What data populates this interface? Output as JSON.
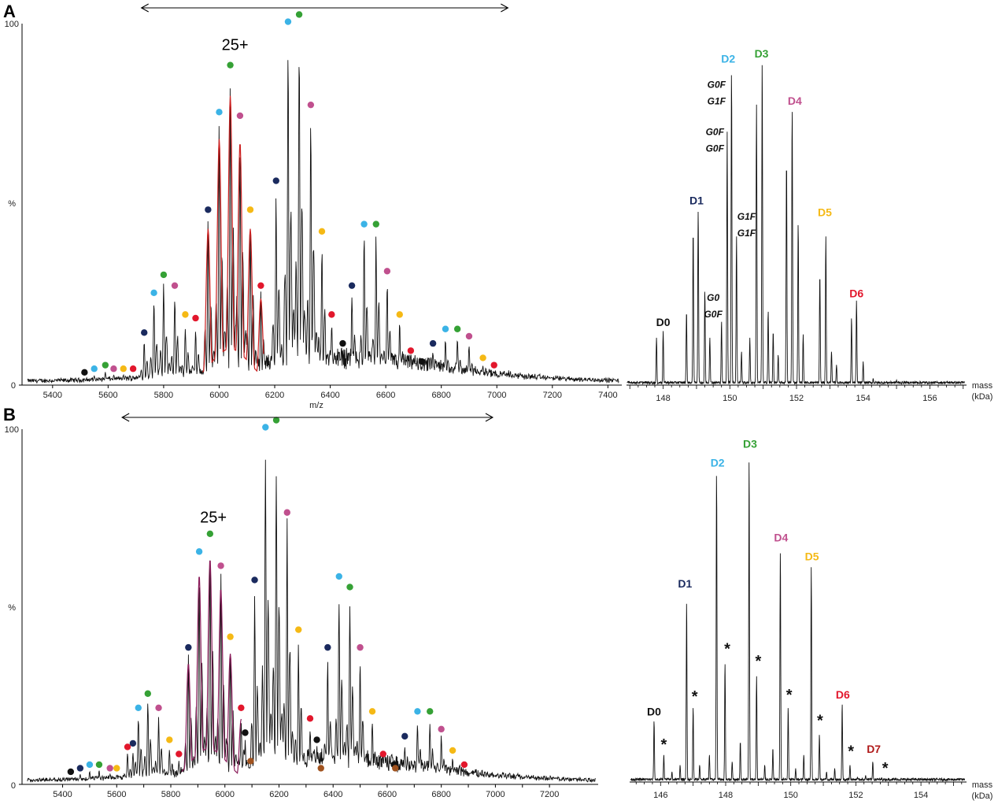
{
  "colors": {
    "D0": "#111111",
    "D1": "#1a2a5e",
    "D2": "#3bb3e6",
    "D3": "#35a135",
    "D4": "#c0508e",
    "D5": "#f5b915",
    "D6": "#e2172c",
    "D7": "#b01a1a",
    "extra_brown": "#a0521e",
    "spectrum": "#111111",
    "overlay_A": "#cc1f1f",
    "overlay_B": "#8a1c5a"
  },
  "panels": {
    "A": {
      "letter": "A",
      "charge_label": "25+",
      "ms_yaxis": {
        "top": "100",
        "mid": "%",
        "bottom": "0"
      },
      "ms_xlabel": "m/z",
      "mass_xlabel": "mass",
      "mass_xunit": "(kDa)"
    },
    "B": {
      "letter": "B",
      "charge_label": "25+",
      "ms_yaxis": {
        "top": "100",
        "mid": "%",
        "bottom": "0"
      },
      "ms_xlabel": "m/z",
      "mass_xlabel": "mass",
      "mass_xunit": "(kDa)"
    }
  },
  "chart_data": [
    {
      "id": "A-ms",
      "type": "line",
      "title": "",
      "xlabel": "m/z",
      "ylabel": "%",
      "xlim": [
        5290,
        7450
      ],
      "ylim": [
        0,
        100
      ],
      "xticks": [
        5400,
        5600,
        5800,
        6000,
        6200,
        6400,
        6600,
        6800,
        7000,
        7200,
        7400
      ],
      "yticks": [
        "0",
        "100"
      ],
      "grid": false,
      "range_arrow": [
        5720,
        7040
      ],
      "charge_state": "25+",
      "charge_at": [
        6040,
        91
      ],
      "peaks": [
        [
          5515,
          2,
          "D0"
        ],
        [
          5550,
          3,
          "D2"
        ],
        [
          5590,
          4,
          "D3"
        ],
        [
          5620,
          3,
          "D4"
        ],
        [
          5655,
          3,
          "D5"
        ],
        [
          5690,
          3,
          "D6"
        ],
        [
          5730,
          13,
          "D1"
        ],
        [
          5765,
          24,
          "D2"
        ],
        [
          5800,
          29,
          "D3"
        ],
        [
          5840,
          26,
          "D4"
        ],
        [
          5878,
          18,
          "D5"
        ],
        [
          5915,
          17,
          "D6"
        ],
        [
          5960,
          47,
          "D1"
        ],
        [
          6000,
          74,
          "D2"
        ],
        [
          6040,
          87,
          "D3"
        ],
        [
          6075,
          73,
          "D4"
        ],
        [
          6112,
          47,
          "D5"
        ],
        [
          6150,
          26,
          "D6"
        ],
        [
          6205,
          55,
          "D1"
        ],
        [
          6248,
          99,
          "D2"
        ],
        [
          6288,
          101,
          "D3"
        ],
        [
          6330,
          76,
          "D4"
        ],
        [
          6370,
          41,
          "D5"
        ],
        [
          6405,
          18,
          "D6"
        ],
        [
          6445,
          10,
          "D0"
        ],
        [
          6478,
          26,
          "D1"
        ],
        [
          6522,
          43,
          "D2"
        ],
        [
          6565,
          43,
          "D3"
        ],
        [
          6605,
          30,
          "D4"
        ],
        [
          6650,
          18,
          "D5"
        ],
        [
          6690,
          8,
          "D6"
        ],
        [
          6730,
          5,
          "D0"
        ],
        [
          6770,
          10,
          "D1"
        ],
        [
          6815,
          14,
          "D2"
        ],
        [
          6858,
          14,
          "D3"
        ],
        [
          6900,
          12,
          "D4"
        ],
        [
          6950,
          6,
          "D5"
        ],
        [
          6990,
          4,
          "D6"
        ],
        [
          7100,
          1.5,
          null
        ],
        [
          7160,
          1.2,
          null
        ],
        [
          7230,
          0.8,
          null
        ]
      ]
    },
    {
      "id": "A-mass",
      "type": "line",
      "title": "",
      "xlabel": "mass (kDa)",
      "xlim": [
        146.9,
        157.1
      ],
      "xticks": [
        148,
        150,
        152,
        154,
        156
      ],
      "grid": false,
      "labels": [
        {
          "text": "D0",
          "x": 148.0,
          "y": 17.5,
          "color": "D0"
        },
        {
          "text": "D1",
          "x": 149.0,
          "y": 53.5,
          "color": "D1"
        },
        {
          "text": "D2",
          "x": 149.95,
          "y": 95.5,
          "color": "D2"
        },
        {
          "text": "D3",
          "x": 150.95,
          "y": 97,
          "color": "D3"
        },
        {
          "text": "D4",
          "x": 151.95,
          "y": 83,
          "color": "D4"
        },
        {
          "text": "D5",
          "x": 152.85,
          "y": 50,
          "color": "D5"
        },
        {
          "text": "D6",
          "x": 153.8,
          "y": 26,
          "color": "D6"
        }
      ],
      "glycoforms": [
        {
          "lines": [
            "G0F",
            "G1F"
          ],
          "x": 149.6,
          "y": 88
        },
        {
          "lines": [
            "G0F",
            "G0F"
          ],
          "x": 149.55,
          "y": 74
        },
        {
          "lines": [
            "G1F",
            "G1F"
          ],
          "x": 150.5,
          "y": 49
        },
        {
          "lines": [
            "G0",
            "G0F"
          ],
          "x": 149.5,
          "y": 25
        }
      ],
      "peaks": [
        [
          147.05,
          1
        ],
        [
          147.8,
          14
        ],
        [
          148.0,
          16
        ],
        [
          148.7,
          22
        ],
        [
          148.9,
          46
        ],
        [
          149.05,
          52
        ],
        [
          149.25,
          28
        ],
        [
          149.4,
          14
        ],
        [
          149.75,
          19
        ],
        [
          149.92,
          75
        ],
        [
          150.05,
          93
        ],
        [
          150.2,
          44
        ],
        [
          150.35,
          10
        ],
        [
          150.6,
          14
        ],
        [
          150.8,
          83
        ],
        [
          150.97,
          96
        ],
        [
          151.15,
          22
        ],
        [
          151.3,
          16
        ],
        [
          151.45,
          9
        ],
        [
          151.7,
          67
        ],
        [
          151.87,
          82
        ],
        [
          152.05,
          48
        ],
        [
          152.2,
          15
        ],
        [
          152.7,
          33
        ],
        [
          152.88,
          44
        ],
        [
          153.05,
          10
        ],
        [
          153.2,
          6
        ],
        [
          153.65,
          20
        ],
        [
          153.8,
          25
        ],
        [
          154.0,
          7
        ],
        [
          154.3,
          2
        ],
        [
          155.0,
          1.5
        ],
        [
          155.6,
          1
        ],
        [
          156.4,
          0.7
        ]
      ]
    },
    {
      "id": "B-ms",
      "type": "line",
      "title": "",
      "xlabel": "",
      "ylabel": "%",
      "xlim": [
        5250,
        7380
      ],
      "ylim": [
        0,
        100
      ],
      "xticks": [
        5400,
        5500,
        5600,
        5700,
        5800,
        5900,
        6000,
        6100,
        6200,
        6300,
        6400,
        6500,
        6600,
        6700,
        6800,
        6900,
        7000,
        7100,
        7200
      ],
      "xticklabels": [
        "5400",
        "",
        "5600",
        "",
        "5800",
        "",
        "6000",
        "",
        "6200",
        "",
        "6400",
        "",
        "6600",
        "",
        "6800",
        "",
        "7000",
        "",
        "7200"
      ],
      "yticks": [
        "0",
        "100"
      ],
      "grid": false,
      "range_arrow": [
        5620,
        6990
      ],
      "charge_state": "25+",
      "charge_at": [
        5940,
        72
      ],
      "peaks": [
        [
          5430,
          2,
          "D0"
        ],
        [
          5465,
          3,
          "D1"
        ],
        [
          5500,
          4,
          "D2"
        ],
        [
          5535,
          4,
          "D3"
        ],
        [
          5575,
          3,
          "D4"
        ],
        [
          5600,
          3,
          "D5"
        ],
        [
          5640,
          9,
          "D6"
        ],
        [
          5670,
          6,
          null
        ],
        [
          5630,
          2,
          null
        ],
        [
          5660,
          10,
          "D1"
        ],
        [
          5680,
          20,
          "D2"
        ],
        [
          5715,
          24,
          "D3"
        ],
        [
          5755,
          20,
          "D4"
        ],
        [
          5795,
          11,
          "D5"
        ],
        [
          5830,
          7,
          "D6"
        ],
        [
          5865,
          37,
          "D1"
        ],
        [
          5905,
          64,
          "D2"
        ],
        [
          5945,
          69,
          "D3"
        ],
        [
          5985,
          60,
          "D4"
        ],
        [
          6020,
          40,
          "D5"
        ],
        [
          6060,
          20,
          "D6"
        ],
        [
          6075,
          13,
          "D0"
        ],
        [
          6095,
          5,
          "extra_brown"
        ],
        [
          6110,
          56,
          "D1"
        ],
        [
          6150,
          99,
          "D2"
        ],
        [
          6190,
          101,
          "D3"
        ],
        [
          6230,
          75,
          "D4"
        ],
        [
          6272,
          42,
          "D5"
        ],
        [
          6315,
          17,
          "D6"
        ],
        [
          6340,
          11,
          "D0"
        ],
        [
          6355,
          3,
          "extra_brown"
        ],
        [
          6380,
          37,
          "D1"
        ],
        [
          6422,
          57,
          "D2"
        ],
        [
          6462,
          54,
          "D3"
        ],
        [
          6500,
          37,
          "D4"
        ],
        [
          6545,
          19,
          "D5"
        ],
        [
          6585,
          7,
          "D6"
        ],
        [
          6625,
          4,
          "D0"
        ],
        [
          6630,
          3,
          "extra_brown"
        ],
        [
          6665,
          12,
          "D1"
        ],
        [
          6712,
          19,
          "D2"
        ],
        [
          6758,
          19,
          "D3"
        ],
        [
          6800,
          14,
          "D4"
        ],
        [
          6842,
          8,
          "D5"
        ],
        [
          6885,
          4,
          "D6"
        ],
        [
          7000,
          1.8,
          null
        ],
        [
          7050,
          1.2,
          null
        ],
        [
          7120,
          0.8,
          null
        ]
      ]
    },
    {
      "id": "B-mass",
      "type": "line",
      "title": "",
      "xlabel": "mass (kDa)",
      "xlim": [
        145.05,
        155.4
      ],
      "xticks": [
        146,
        148,
        150,
        152,
        154
      ],
      "grid": false,
      "labels": [
        {
          "text": "D0",
          "x": 145.8,
          "y": 19.5,
          "color": "D0"
        },
        {
          "text": "D1",
          "x": 146.75,
          "y": 57,
          "color": "D1"
        },
        {
          "text": "D2",
          "x": 147.75,
          "y": 92.5,
          "color": "D2"
        },
        {
          "text": "D3",
          "x": 148.75,
          "y": 98,
          "color": "D3"
        },
        {
          "text": "D4",
          "x": 149.7,
          "y": 70.5,
          "color": "D4"
        },
        {
          "text": "D5",
          "x": 150.65,
          "y": 65,
          "color": "D5"
        },
        {
          "text": "D6",
          "x": 151.6,
          "y": 24.5,
          "color": "D6"
        },
        {
          "text": "D7",
          "x": 152.55,
          "y": 8.5,
          "color": "D7"
        }
      ],
      "asterisks": [
        [
          146.1,
          9.5
        ],
        [
          147.05,
          23.5
        ],
        [
          148.05,
          37.5
        ],
        [
          149.0,
          34
        ],
        [
          149.95,
          24
        ],
        [
          150.9,
          16.5
        ],
        [
          151.85,
          7.5
        ],
        [
          152.9,
          2.5
        ]
      ],
      "peaks": [
        [
          145.3,
          0.5
        ],
        [
          145.55,
          1
        ],
        [
          145.8,
          18
        ],
        [
          146.1,
          8
        ],
        [
          146.35,
          3
        ],
        [
          146.6,
          5
        ],
        [
          146.8,
          53
        ],
        [
          147.0,
          22
        ],
        [
          147.2,
          5
        ],
        [
          147.5,
          8
        ],
        [
          147.72,
          91
        ],
        [
          147.98,
          35
        ],
        [
          148.2,
          6
        ],
        [
          148.45,
          12
        ],
        [
          148.72,
          95
        ],
        [
          148.95,
          31
        ],
        [
          149.2,
          5
        ],
        [
          149.45,
          10
        ],
        [
          149.68,
          68
        ],
        [
          149.92,
          22
        ],
        [
          150.15,
          4
        ],
        [
          150.4,
          8
        ],
        [
          150.63,
          63
        ],
        [
          150.88,
          14
        ],
        [
          151.1,
          3
        ],
        [
          151.35,
          4
        ],
        [
          151.58,
          23
        ],
        [
          151.82,
          5
        ],
        [
          152.05,
          1.5
        ],
        [
          152.3,
          2
        ],
        [
          152.52,
          6
        ],
        [
          152.8,
          1.2
        ],
        [
          153.3,
          0.6
        ],
        [
          154.0,
          0.5
        ],
        [
          154.6,
          0.6
        ]
      ]
    }
  ]
}
